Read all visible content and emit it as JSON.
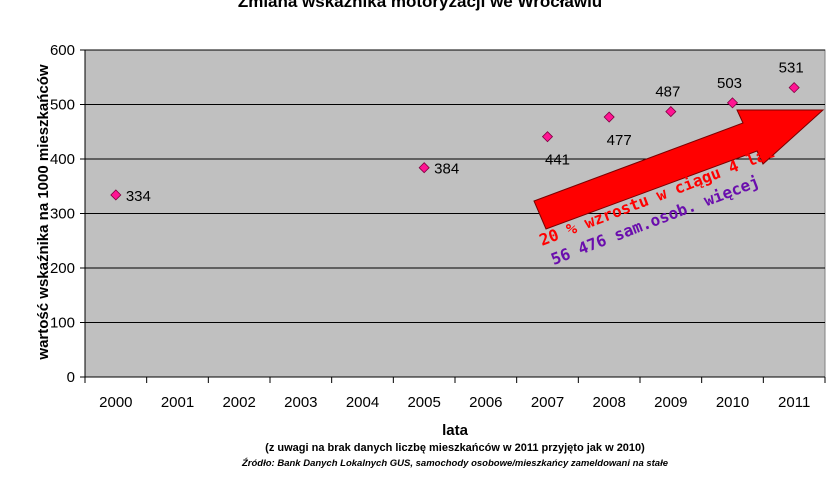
{
  "chart_data": {
    "type": "scatter",
    "title": "Zmiana wskaźnika motoryzacji we Wrocławiu",
    "xlabel": "lata",
    "ylabel": "wartość wskaźnika na 1000 mieszkańców",
    "categories": [
      "2000",
      "2001",
      "2002",
      "2003",
      "2004",
      "2005",
      "2006",
      "2007",
      "2008",
      "2009",
      "2010",
      "2011"
    ],
    "points": [
      {
        "x": "2000",
        "y": 334
      },
      {
        "x": "2005",
        "y": 384
      },
      {
        "x": "2007",
        "y": 441
      },
      {
        "x": "2008",
        "y": 477
      },
      {
        "x": "2009",
        "y": 487
      },
      {
        "x": "2010",
        "y": 503
      },
      {
        "x": "2011",
        "y": 531
      }
    ],
    "ylim": [
      0,
      600
    ],
    "yticks": [
      0,
      100,
      200,
      300,
      400,
      500,
      600
    ],
    "grid": true,
    "legend": "none",
    "annotations": {
      "growth": "20 % wzrostu w ciągu 4 lat",
      "cars": "56 476 sam.osob. więcej"
    },
    "note": "(z uwagi na brak danych liczbę mieszkańców w 2011 przyjęto jak w 2010)",
    "source": "Źródło: Bank Danych Lokalnych GUS, samochody osobowe/mieszkańcy zameldowani na stałe"
  },
  "colors": {
    "plot_bg": "#c0c0c0",
    "marker_fill": "#ff1493",
    "marker_stroke": "#800040",
    "arrow_fill": "#ff0000",
    "growth_text": "#ff0000",
    "cars_text": "#6a0dad"
  }
}
